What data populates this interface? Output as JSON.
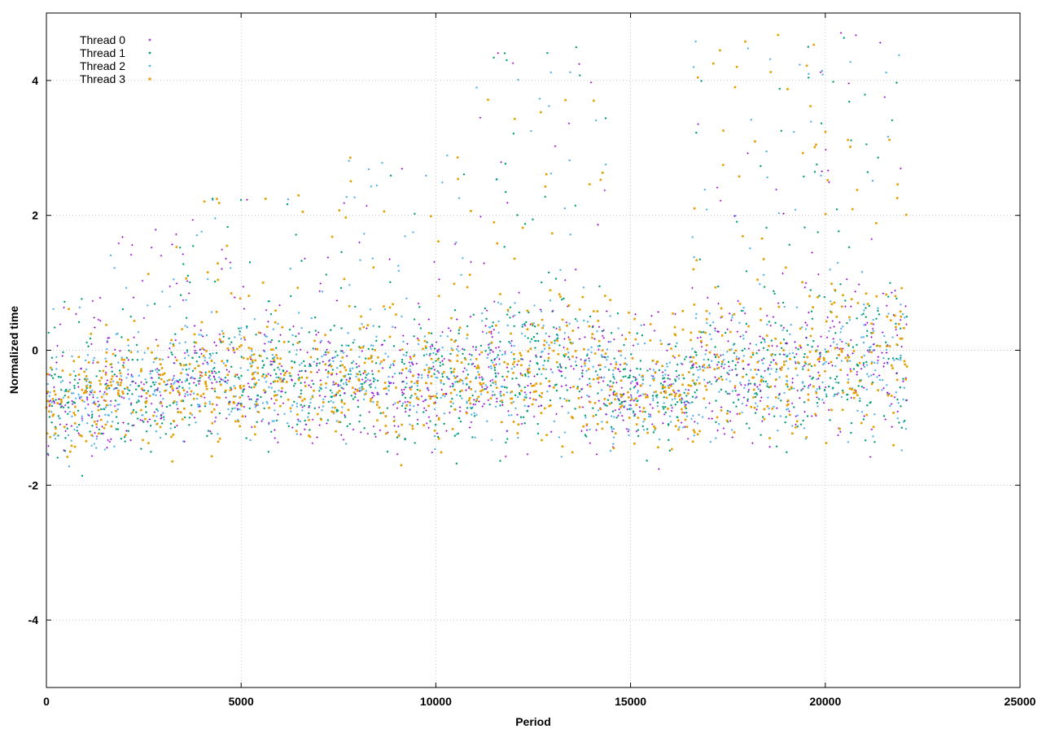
{
  "chart_data": {
    "type": "scatter",
    "title": "",
    "xlabel": "Period",
    "ylabel": "Normalized time",
    "xlim": [
      0,
      25000
    ],
    "ylim": [
      -5,
      5
    ],
    "x_ticks": [
      "0",
      "5000",
      "10000",
      "15000",
      "20000",
      "25000"
    ],
    "y_ticks": [
      "-4",
      "-2",
      "0",
      "2",
      "4"
    ],
    "x_tick_values": [
      0,
      5000,
      10000,
      15000,
      20000,
      25000
    ],
    "y_tick_values": [
      -4,
      -2,
      0,
      2,
      4
    ],
    "grid": true,
    "legend_position": "top-left",
    "x_data_range": [
      0,
      22100
    ],
    "series": [
      {
        "name": "Thread 0",
        "color": "#9400d3",
        "marker": "plus"
      },
      {
        "name": "Thread 1",
        "color": "#009e73",
        "marker": "dot"
      },
      {
        "name": "Thread 2",
        "color": "#56b4e9",
        "marker": "dot"
      },
      {
        "name": "Thread 3",
        "color": "#e69f00",
        "marker": "square"
      }
    ],
    "segments": [
      {
        "x": [
          0,
          1500
        ],
        "base": -0.8,
        "spread": 0.35,
        "spikes": 1.6
      },
      {
        "x": [
          1500,
          3500
        ],
        "base": -0.6,
        "spread": 0.4,
        "spikes": 2.4
      },
      {
        "x": [
          3500,
          7500
        ],
        "base": -0.5,
        "spread": 0.4,
        "spikes": 2.8
      },
      {
        "x": [
          7500,
          11000
        ],
        "base": -0.5,
        "spread": 0.45,
        "spikes": 3.5
      },
      {
        "x": [
          11000,
          14500
        ],
        "base": -0.3,
        "spread": 0.5,
        "spikes": 4.8
      },
      {
        "x": [
          14500,
          16500
        ],
        "base": -0.7,
        "spread": 0.35,
        "spikes": 1.3
      },
      {
        "x": [
          16500,
          20000
        ],
        "base": -0.3,
        "spread": 0.5,
        "spikes": 5.0
      },
      {
        "x": [
          20000,
          22100
        ],
        "base": -0.2,
        "spread": 0.55,
        "spikes": 5.0
      }
    ]
  }
}
